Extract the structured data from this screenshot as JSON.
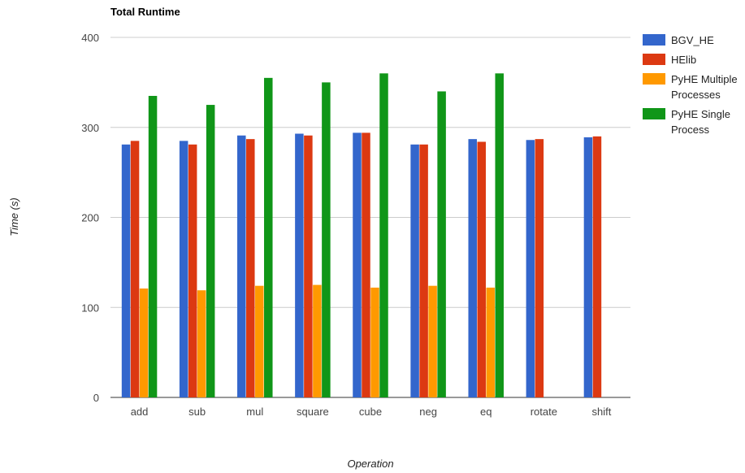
{
  "chart_data": {
    "type": "bar",
    "title": "Total Runtime",
    "xlabel": "Operation",
    "ylabel": "Time (s)",
    "ylim": [
      0,
      400
    ],
    "yticks": [
      0,
      100,
      200,
      300,
      400
    ],
    "grid": true,
    "legend_position": "right",
    "categories": [
      "add",
      "sub",
      "mul",
      "square",
      "cube",
      "neg",
      "eq",
      "rotate",
      "shift"
    ],
    "series": [
      {
        "name": "BGV_HE",
        "color": "#3366cc",
        "values": [
          281,
          285,
          291,
          293,
          294,
          281,
          287,
          286,
          289
        ]
      },
      {
        "name": "HElib",
        "color": "#dc3912",
        "values": [
          285,
          281,
          287,
          291,
          294,
          281,
          284,
          287,
          290
        ]
      },
      {
        "name": "PyHE Multiple Processes",
        "color": "#ff9900",
        "values": [
          121,
          119,
          124,
          125,
          122,
          124,
          122,
          null,
          null
        ]
      },
      {
        "name": "PyHE Single Process",
        "color": "#109618",
        "values": [
          335,
          325,
          355,
          350,
          360,
          340,
          360,
          null,
          null
        ]
      }
    ]
  }
}
